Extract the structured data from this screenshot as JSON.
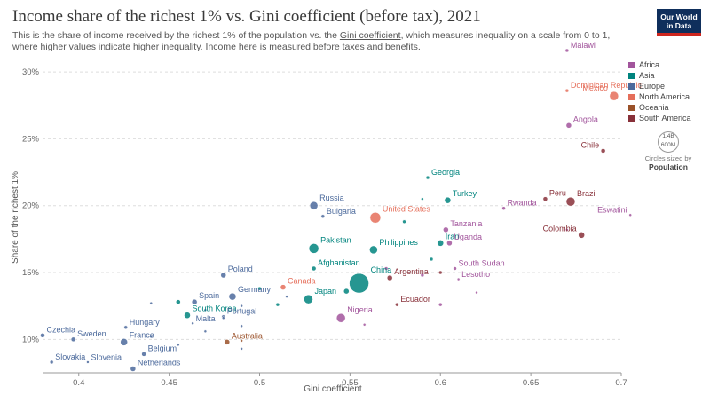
{
  "title": "Income share of the richest 1% vs. Gini coefficient (before tax), 2021",
  "subtitle_pre": "This is the share of income received by the richest 1% of the population vs. the ",
  "subtitle_link": "Gini coefficient",
  "subtitle_post": ", which measures inequality on a scale from 0 to 1, where higher values indicate higher inequality. Income here is measured before taxes and benefits.",
  "logo": {
    "line1": "Our World",
    "line2": "in Data"
  },
  "size_legend": {
    "big": "1.4B",
    "small": "600M",
    "caption": "Circles sized by",
    "variable": "Population"
  },
  "colors": {
    "Africa": "#a2559c",
    "Asia": "#00847e",
    "Europe": "#4c6a9c",
    "North America": "#e56e5a",
    "Oceania": "#9a5129",
    "South America": "#883039"
  },
  "chart_data": {
    "type": "scatter",
    "xlabel": "Gini coefficient",
    "ylabel": "Share of the richest 1%",
    "xlim": [
      0.38,
      0.7
    ],
    "ylim": [
      7.5,
      31
    ],
    "x_ticks": [
      0.4,
      0.45,
      0.5,
      0.55,
      0.6,
      0.65,
      0.7
    ],
    "x_tick_labels": [
      "0.4",
      "0.45",
      "0.5",
      "0.55",
      "0.6",
      "0.65",
      "0.7"
    ],
    "y_ticks": [
      10,
      15,
      20,
      25,
      30
    ],
    "y_tick_labels": [
      "10%",
      "15%",
      "20%",
      "25%",
      "30%"
    ],
    "grid": "horizontal",
    "legend_position": "right",
    "legend": [
      "Africa",
      "Asia",
      "Europe",
      "North America",
      "Oceania",
      "South America"
    ],
    "points": [
      {
        "label": "Malawi",
        "region": "Africa",
        "x": 0.67,
        "y": 31.6,
        "r": 2
      },
      {
        "label": "Dominican Republic",
        "region": "North America",
        "x": 0.67,
        "y": 28.6,
        "r": 2
      },
      {
        "label": "Mexico",
        "region": "North America",
        "x": 0.696,
        "y": 28.2,
        "r": 5
      },
      {
        "label": "Angola",
        "region": "Africa",
        "x": 0.671,
        "y": 26.0,
        "r": 3
      },
      {
        "label": "Chile",
        "region": "South America",
        "x": 0.69,
        "y": 24.1,
        "r": 2.5
      },
      {
        "label": "Georgia",
        "region": "Asia",
        "x": 0.593,
        "y": 22.1,
        "r": 2
      },
      {
        "label": "Turkey",
        "region": "Asia",
        "x": 0.604,
        "y": 20.4,
        "r": 3.5
      },
      {
        "label": "Russia",
        "region": "Europe",
        "x": 0.53,
        "y": 20.0,
        "r": 4.5
      },
      {
        "label": "Bulgaria",
        "region": "Europe",
        "x": 0.535,
        "y": 19.2,
        "r": 2
      },
      {
        "label": "United States",
        "region": "North America",
        "x": 0.564,
        "y": 19.1,
        "r": 6
      },
      {
        "label": "Peru",
        "region": "South America",
        "x": 0.658,
        "y": 20.5,
        "r": 2.5
      },
      {
        "label": "Brazil",
        "region": "South America",
        "x": 0.672,
        "y": 20.3,
        "r": 5
      },
      {
        "label": "Rwanda",
        "region": "Africa",
        "x": 0.635,
        "y": 19.8,
        "r": 2
      },
      {
        "label": "Eswatini",
        "region": "Africa",
        "x": 0.705,
        "y": 19.3,
        "r": 1.5
      },
      {
        "label": "Tanzania",
        "region": "Africa",
        "x": 0.603,
        "y": 18.2,
        "r": 3
      },
      {
        "label": "Colombia",
        "region": "South America",
        "x": 0.678,
        "y": 17.8,
        "r": 3.5
      },
      {
        "label": "Iran",
        "region": "Asia",
        "x": 0.6,
        "y": 17.2,
        "r": 3.5
      },
      {
        "label": "Uganda",
        "region": "Africa",
        "x": 0.605,
        "y": 17.2,
        "r": 3
      },
      {
        "label": "Philippines",
        "region": "Asia",
        "x": 0.563,
        "y": 16.7,
        "r": 4.5
      },
      {
        "label": "Pakistan",
        "region": "Asia",
        "x": 0.53,
        "y": 16.8,
        "r": 5.5
      },
      {
        "label": "Afghanistan",
        "region": "Asia",
        "x": 0.53,
        "y": 15.3,
        "r": 2.5
      },
      {
        "label": "China",
        "region": "Asia",
        "x": 0.555,
        "y": 14.2,
        "r": 11
      },
      {
        "label": "South Sudan",
        "region": "Africa",
        "x": 0.608,
        "y": 15.3,
        "r": 2
      },
      {
        "label": "Argentina",
        "region": "South America",
        "x": 0.572,
        "y": 14.6,
        "r": 3
      },
      {
        "label": "Lesotho",
        "region": "Africa",
        "x": 0.61,
        "y": 14.5,
        "r": 1.5
      },
      {
        "label": "Poland",
        "region": "Europe",
        "x": 0.48,
        "y": 14.8,
        "r": 3
      },
      {
        "label": "Canada",
        "region": "North America",
        "x": 0.513,
        "y": 13.9,
        "r": 3
      },
      {
        "label": "Japan",
        "region": "Asia",
        "x": 0.527,
        "y": 13.0,
        "r": 5
      },
      {
        "label": "Germany",
        "region": "Europe",
        "x": 0.485,
        "y": 13.2,
        "r": 4
      },
      {
        "label": "Spain",
        "region": "Europe",
        "x": 0.464,
        "y": 12.8,
        "r": 3
      },
      {
        "label": "Ecuador",
        "region": "South America",
        "x": 0.576,
        "y": 12.6,
        "r": 2
      },
      {
        "label": "South Korea",
        "region": "Asia",
        "x": 0.46,
        "y": 11.8,
        "r": 3.5
      },
      {
        "label": "Portugal",
        "region": "Europe",
        "x": 0.48,
        "y": 11.7,
        "r": 2
      },
      {
        "label": "Nigeria",
        "region": "Africa",
        "x": 0.545,
        "y": 11.6,
        "r": 5
      },
      {
        "label": "Malta",
        "region": "Europe",
        "x": 0.463,
        "y": 11.2,
        "r": 1.5
      },
      {
        "label": "Hungary",
        "region": "Europe",
        "x": 0.426,
        "y": 10.9,
        "r": 2
      },
      {
        "label": "Czechia",
        "region": "Europe",
        "x": 0.38,
        "y": 10.3,
        "r": 2.5
      },
      {
        "label": "Sweden",
        "region": "Europe",
        "x": 0.397,
        "y": 10.0,
        "r": 2.5
      },
      {
        "label": "France",
        "region": "Europe",
        "x": 0.425,
        "y": 9.8,
        "r": 4
      },
      {
        "label": "Australia",
        "region": "Oceania",
        "x": 0.482,
        "y": 9.8,
        "r": 3
      },
      {
        "label": "Belgium",
        "region": "Europe",
        "x": 0.436,
        "y": 8.9,
        "r": 2.5
      },
      {
        "label": "Slovakia",
        "region": "Europe",
        "x": 0.385,
        "y": 8.3,
        "r": 2
      },
      {
        "label": "Slovenia",
        "region": "Europe",
        "x": 0.405,
        "y": 8.3,
        "r": 1.5
      },
      {
        "label": "Netherlands",
        "region": "Europe",
        "x": 0.43,
        "y": 7.8,
        "r": 3
      },
      {
        "label": "",
        "region": "Africa",
        "x": 0.6,
        "y": 12.6,
        "r": 2
      },
      {
        "label": "",
        "region": "Asia",
        "x": 0.595,
        "y": 16.0,
        "r": 2
      },
      {
        "label": "",
        "region": "Europe",
        "x": 0.44,
        "y": 12.7,
        "r": 1.5
      },
      {
        "label": "",
        "region": "Europe",
        "x": 0.49,
        "y": 12.5,
        "r": 1.5
      },
      {
        "label": "",
        "region": "Europe",
        "x": 0.47,
        "y": 12.2,
        "r": 1.5
      },
      {
        "label": "",
        "region": "Europe",
        "x": 0.48,
        "y": 11.6,
        "r": 1.5
      },
      {
        "label": "",
        "region": "Europe",
        "x": 0.49,
        "y": 11.0,
        "r": 1.5
      },
      {
        "label": "",
        "region": "Europe",
        "x": 0.47,
        "y": 10.6,
        "r": 1.5
      },
      {
        "label": "",
        "region": "Europe",
        "x": 0.44,
        "y": 10.2,
        "r": 1.5
      },
      {
        "label": "",
        "region": "Asia",
        "x": 0.51,
        "y": 12.6,
        "r": 2
      },
      {
        "label": "",
        "region": "Asia",
        "x": 0.5,
        "y": 13.8,
        "r": 2
      },
      {
        "label": "",
        "region": "Europe",
        "x": 0.515,
        "y": 13.2,
        "r": 1.5
      },
      {
        "label": "",
        "region": "Africa",
        "x": 0.57,
        "y": 15.3,
        "r": 2
      },
      {
        "label": "",
        "region": "Africa",
        "x": 0.59,
        "y": 14.8,
        "r": 2
      },
      {
        "label": "",
        "region": "South America",
        "x": 0.6,
        "y": 15.0,
        "r": 2
      },
      {
        "label": "",
        "region": "Africa",
        "x": 0.62,
        "y": 13.5,
        "r": 1.5
      },
      {
        "label": "",
        "region": "Asia",
        "x": 0.58,
        "y": 18.8,
        "r": 2
      },
      {
        "label": "",
        "region": "Asia",
        "x": 0.59,
        "y": 20.5,
        "r": 1.5
      },
      {
        "label": "",
        "region": "Africa",
        "x": 0.67,
        "y": 18.2,
        "r": 1.5
      },
      {
        "label": "",
        "region": "Africa",
        "x": 0.558,
        "y": 11.1,
        "r": 1.5
      },
      {
        "label": "",
        "region": "Europe",
        "x": 0.49,
        "y": 9.3,
        "r": 1.5
      },
      {
        "label": "",
        "region": "Europe",
        "x": 0.455,
        "y": 9.6,
        "r": 1.5
      },
      {
        "label": "",
        "region": "Oceania",
        "x": 0.49,
        "y": 9.9,
        "r": 1.5
      },
      {
        "label": "",
        "region": "Asia",
        "x": 0.455,
        "y": 12.8,
        "r": 2.5
      },
      {
        "label": "",
        "region": "Asia",
        "x": 0.548,
        "y": 13.6,
        "r": 3
      }
    ]
  }
}
